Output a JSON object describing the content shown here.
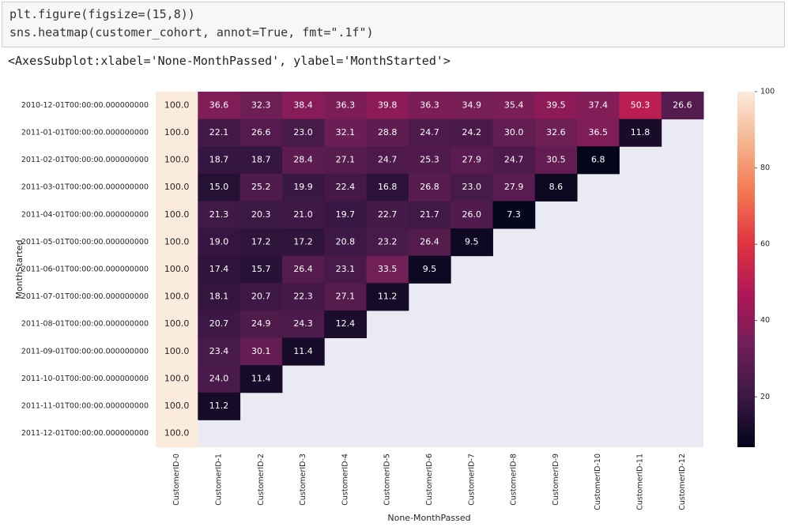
{
  "code": {
    "lines": [
      "plt.figure(figsize=(15,8))",
      "sns.heatmap(customer_cohort, annot=True, fmt=\".1f\")"
    ]
  },
  "output": {
    "text": "<AxesSubplot:xlabel='None-MonthPassed', ylabel='MonthStarted'>"
  },
  "chart_data": {
    "type": "heatmap",
    "xlabel": "None-MonthPassed",
    "ylabel": "MonthStarted",
    "categories": [
      "CustomerID-0",
      "CustomerID-1",
      "CustomerID-2",
      "CustomerID-3",
      "CustomerID-4",
      "CustomerID-5",
      "CustomerID-6",
      "CustomerID-7",
      "CustomerID-8",
      "CustomerID-9",
      "CustomerID-10",
      "CustomerID-11",
      "CustomerID-12"
    ],
    "rows": [
      "2010-12-01T00:00:00.000000000",
      "2011-01-01T00:00:00.000000000",
      "2011-02-01T00:00:00.000000000",
      "2011-03-01T00:00:00.000000000",
      "2011-04-01T00:00:00.000000000",
      "2011-05-01T00:00:00.000000000",
      "2011-06-01T00:00:00.000000000",
      "2011-07-01T00:00:00.000000000",
      "2011-08-01T00:00:00.000000000",
      "2011-09-01T00:00:00.000000000",
      "2011-10-01T00:00:00.000000000",
      "2011-11-01T00:00:00.000000000",
      "2011-12-01T00:00:00.000000000"
    ],
    "values": [
      [
        100.0,
        36.6,
        32.3,
        38.4,
        36.3,
        39.8,
        36.3,
        34.9,
        35.4,
        39.5,
        37.4,
        50.3,
        26.6
      ],
      [
        100.0,
        22.1,
        26.6,
        23.0,
        32.1,
        28.8,
        24.7,
        24.2,
        30.0,
        32.6,
        36.5,
        11.8,
        null
      ],
      [
        100.0,
        18.7,
        18.7,
        28.4,
        27.1,
        24.7,
        25.3,
        27.9,
        24.7,
        30.5,
        6.8,
        null,
        null
      ],
      [
        100.0,
        15.0,
        25.2,
        19.9,
        22.4,
        16.8,
        26.8,
        23.0,
        27.9,
        8.6,
        null,
        null,
        null
      ],
      [
        100.0,
        21.3,
        20.3,
        21.0,
        19.7,
        22.7,
        21.7,
        26.0,
        7.3,
        null,
        null,
        null,
        null
      ],
      [
        100.0,
        19.0,
        17.2,
        17.2,
        20.8,
        23.2,
        26.4,
        9.5,
        null,
        null,
        null,
        null,
        null
      ],
      [
        100.0,
        17.4,
        15.7,
        26.4,
        23.1,
        33.5,
        9.5,
        null,
        null,
        null,
        null,
        null,
        null
      ],
      [
        100.0,
        18.1,
        20.7,
        22.3,
        27.1,
        11.2,
        null,
        null,
        null,
        null,
        null,
        null,
        null
      ],
      [
        100.0,
        20.7,
        24.9,
        24.3,
        12.4,
        null,
        null,
        null,
        null,
        null,
        null,
        null,
        null
      ],
      [
        100.0,
        23.4,
        30.1,
        11.4,
        null,
        null,
        null,
        null,
        null,
        null,
        null,
        null,
        null
      ],
      [
        100.0,
        24.0,
        11.4,
        null,
        null,
        null,
        null,
        null,
        null,
        null,
        null,
        null,
        null
      ],
      [
        100.0,
        11.2,
        null,
        null,
        null,
        null,
        null,
        null,
        null,
        null,
        null,
        null,
        null
      ],
      [
        100.0,
        null,
        null,
        null,
        null,
        null,
        null,
        null,
        null,
        null,
        null,
        null,
        null
      ]
    ],
    "value_labels": [
      [
        "100.0",
        "36.6",
        "32.3",
        "38.4",
        "36.3",
        "39.8",
        "36.3",
        "34.9",
        "35.4",
        "39.5",
        "37.4",
        "50.3",
        "26.6"
      ],
      [
        "100.0",
        "22.1",
        "26.6",
        "23.0",
        "32.1",
        "28.8",
        "24.7",
        "24.2",
        "30.0",
        "32.6",
        "36.5",
        "11.8",
        null
      ],
      [
        "100.0",
        "18.7",
        "18.7",
        "28.4",
        "27.1",
        "24.7",
        "25.3",
        "27.9",
        "24.7",
        "30.5",
        "6.8",
        null,
        null
      ],
      [
        "100.0",
        "15.0",
        "25.2",
        "19.9",
        "22.4",
        "16.8",
        "26.8",
        "23.0",
        "27.9",
        "8.6",
        null,
        null,
        null
      ],
      [
        "100.0",
        "21.3",
        "20.3",
        "21.0",
        "19.7",
        "22.7",
        "21.7",
        "26.0",
        "7.3",
        null,
        null,
        null,
        null
      ],
      [
        "100.0",
        "19.0",
        "17.2",
        "17.2",
        "20.8",
        "23.2",
        "26.4",
        "9.5",
        null,
        null,
        null,
        null,
        null
      ],
      [
        "100.0",
        "17.4",
        "15.7",
        "26.4",
        "23.1",
        "33.5",
        "9.5",
        null,
        null,
        null,
        null,
        null,
        null
      ],
      [
        "100.0",
        "18.1",
        "20.7",
        "22.3",
        "27.1",
        "11.2",
        null,
        null,
        null,
        null,
        null,
        null,
        null
      ],
      [
        "100.0",
        "20.7",
        "24.9",
        "24.3",
        "12.4",
        null,
        null,
        null,
        null,
        null,
        null,
        null,
        null
      ],
      [
        "100.0",
        "23.4",
        "30.1",
        "11.4",
        null,
        null,
        null,
        null,
        null,
        null,
        null,
        null,
        null
      ],
      [
        "100.0",
        "24.0",
        "11.4",
        null,
        null,
        null,
        null,
        null,
        null,
        null,
        null,
        null,
        null
      ],
      [
        "100.0",
        "11.2",
        null,
        null,
        null,
        null,
        null,
        null,
        null,
        null,
        null,
        null,
        null
      ],
      [
        "100.0",
        null,
        null,
        null,
        null,
        null,
        null,
        null,
        null,
        null,
        null,
        null,
        null
      ]
    ],
    "clim": [
      6.8,
      100
    ],
    "cticks": [
      20,
      40,
      60,
      80,
      100
    ],
    "colormap": [
      "#03051a",
      "#3b1845",
      "#701f57",
      "#ad1759",
      "#e13342",
      "#f37651",
      "#f6b48f",
      "#faebdd"
    ],
    "nan_color": "#eaeaf2"
  }
}
